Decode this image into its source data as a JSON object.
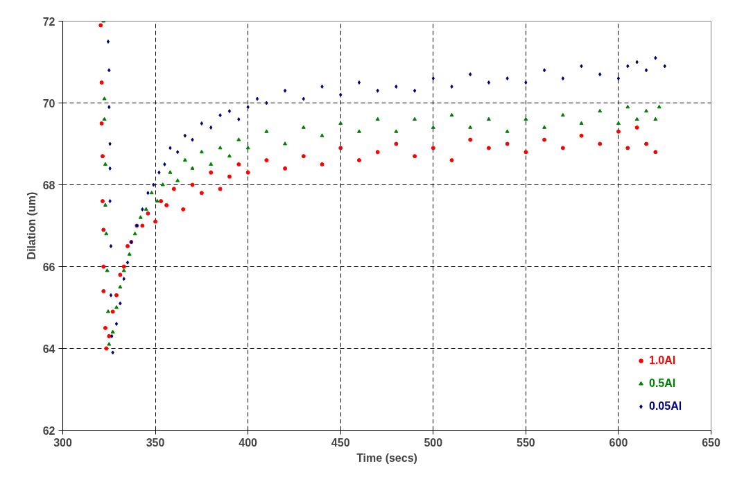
{
  "chart_data": {
    "type": "scatter",
    "xlabel": "Time (secs)",
    "ylabel": "Dilation (um)",
    "xlim": [
      300,
      650
    ],
    "xticks": [
      300,
      350,
      400,
      450,
      500,
      550,
      600,
      650
    ],
    "ylim": [
      62,
      72
    ],
    "yticks": [
      62,
      64,
      66,
      68,
      70,
      72
    ],
    "grid": true,
    "legend": "bottom right",
    "line_style": "dashed",
    "series": [
      {
        "name": "1.0Al",
        "color": "#ff0000",
        "marker": "circle",
        "x": [
          320.5,
          321,
          321,
          321.5,
          321.5,
          322,
          322,
          322,
          323,
          323.5,
          325,
          327,
          329,
          331,
          333,
          335,
          337,
          340,
          343,
          346,
          350,
          353,
          356,
          360,
          365,
          370,
          375,
          380,
          385,
          390,
          395,
          400,
          410,
          420,
          430,
          440,
          450,
          460,
          470,
          480,
          490,
          500,
          510,
          520,
          530,
          540,
          550,
          560,
          570,
          580,
          590,
          600,
          605,
          610,
          615,
          620
        ],
        "values": [
          71.9,
          70.5,
          69.5,
          68.7,
          67.6,
          66.9,
          66.0,
          65.4,
          64.5,
          64.0,
          64.3,
          64.9,
          65.3,
          65.8,
          66.0,
          66.5,
          66.6,
          67.0,
          67.0,
          67.3,
          67.1,
          67.6,
          67.5,
          67.9,
          67.4,
          68.0,
          67.8,
          68.3,
          67.9,
          68.2,
          68.5,
          68.3,
          68.6,
          68.4,
          68.7,
          68.5,
          68.9,
          68.6,
          68.8,
          69.0,
          68.7,
          68.9,
          68.6,
          69.1,
          68.9,
          69.0,
          68.8,
          69.1,
          68.9,
          69.2,
          69.0,
          69.3,
          68.9,
          69.4,
          69.0,
          68.8
        ]
      },
      {
        "name": "0.5Al",
        "color": "#008000",
        "marker": "triangle",
        "x": [
          322,
          322.5,
          322.5,
          323,
          323,
          323.5,
          324,
          324.5,
          325,
          327,
          329,
          331,
          333,
          336,
          339,
          342,
          345,
          348,
          351,
          354,
          358,
          362,
          366,
          370,
          375,
          380,
          385,
          390,
          395,
          400,
          410,
          420,
          430,
          440,
          450,
          460,
          470,
          480,
          490,
          500,
          510,
          520,
          530,
          540,
          550,
          560,
          570,
          580,
          590,
          600,
          605,
          610,
          615,
          620,
          622
        ],
        "values": [
          72.0,
          70.1,
          69.6,
          68.5,
          67.5,
          66.8,
          65.9,
          64.9,
          64.1,
          64.4,
          65.0,
          65.5,
          65.9,
          66.3,
          66.8,
          67.2,
          67.4,
          67.8,
          67.6,
          68.0,
          68.3,
          68.1,
          68.6,
          68.4,
          68.8,
          68.5,
          68.9,
          68.7,
          69.1,
          68.9,
          69.3,
          69.0,
          69.4,
          69.2,
          69.5,
          69.3,
          69.6,
          69.3,
          69.6,
          69.4,
          69.7,
          69.4,
          69.6,
          69.3,
          69.6,
          69.4,
          69.7,
          69.5,
          69.8,
          69.5,
          69.9,
          69.6,
          69.8,
          69.6,
          69.9
        ]
      },
      {
        "name": "0.05Al",
        "color": "#000080",
        "marker": "diamond",
        "x": [
          324.5,
          325,
          325,
          325.5,
          325.5,
          325.5,
          326,
          326,
          326.5,
          327,
          329,
          331,
          333,
          335,
          337,
          340,
          343,
          346,
          349,
          352,
          355,
          358,
          362,
          366,
          370,
          375,
          380,
          385,
          390,
          395,
          400,
          405,
          410,
          420,
          430,
          440,
          450,
          460,
          470,
          480,
          490,
          500,
          510,
          520,
          530,
          540,
          550,
          560,
          570,
          580,
          590,
          600,
          605,
          610,
          615,
          620,
          625
        ],
        "values": [
          71.5,
          70.8,
          69.9,
          69.0,
          68.4,
          67.6,
          66.5,
          65.3,
          64.3,
          63.9,
          64.6,
          65.1,
          65.7,
          66.1,
          66.6,
          67.0,
          67.4,
          67.8,
          68.0,
          68.3,
          68.5,
          68.9,
          68.8,
          69.2,
          69.1,
          69.5,
          69.4,
          69.7,
          69.8,
          69.6,
          69.9,
          70.1,
          70.0,
          70.3,
          70.1,
          70.4,
          70.2,
          70.5,
          70.3,
          70.4,
          70.3,
          70.6,
          70.4,
          70.7,
          70.5,
          70.6,
          70.5,
          70.8,
          70.6,
          70.9,
          70.7,
          70.6,
          70.9,
          71.0,
          70.8,
          71.1,
          70.9
        ]
      }
    ]
  }
}
